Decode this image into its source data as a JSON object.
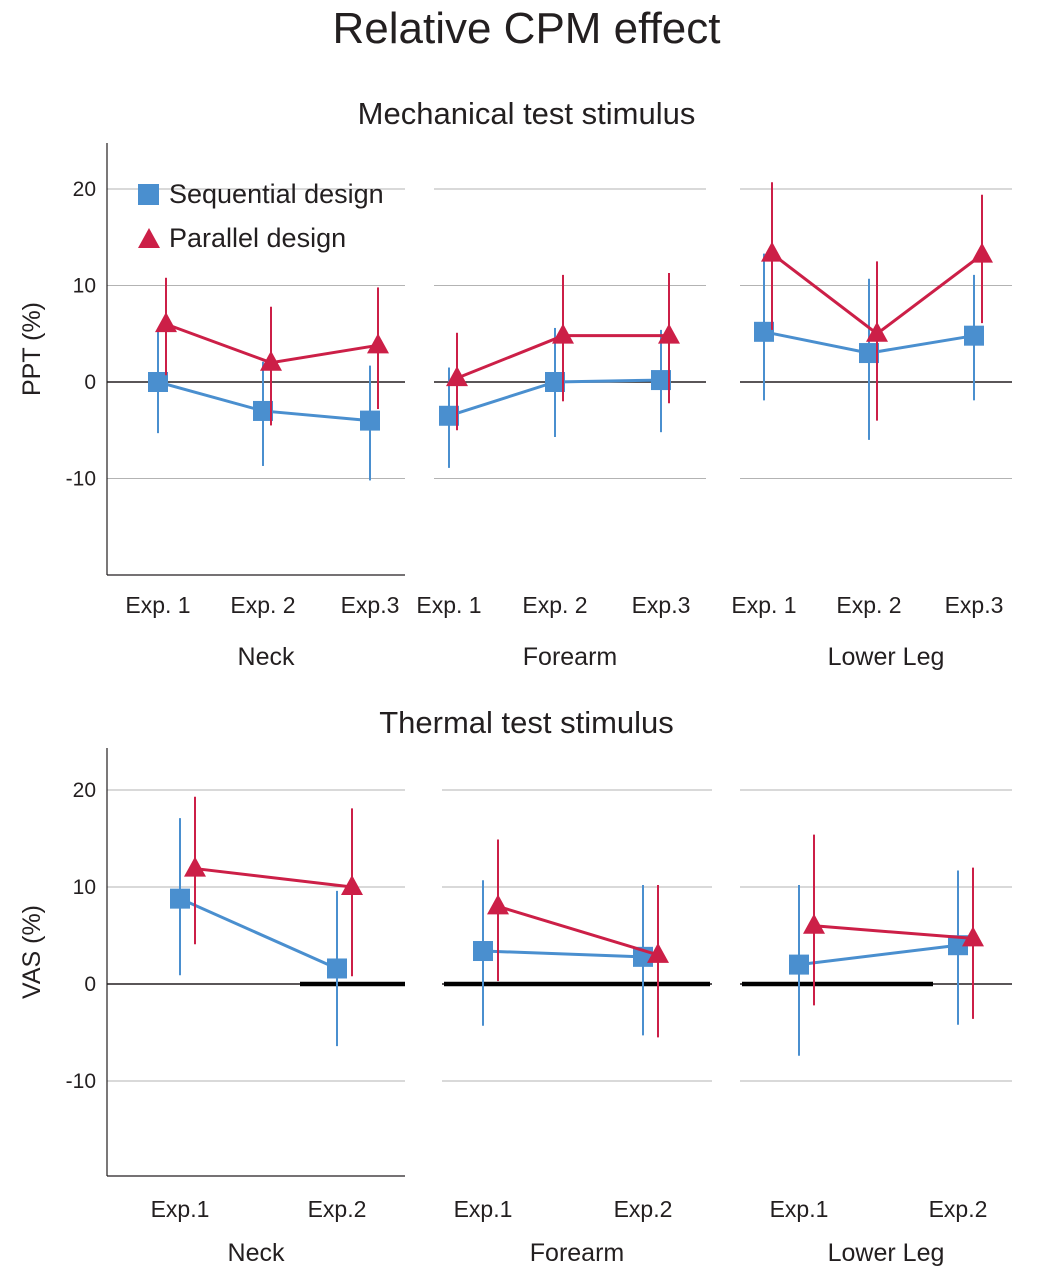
{
  "title": "Relative CPM effect",
  "colors": {
    "sequential": "#4a8fcf",
    "parallel": "#cc1f47",
    "grid": "#b3b3b3",
    "axis": "#231f20"
  },
  "legend": {
    "sequential": "Sequential design",
    "parallel": "Parallel design",
    "sequential_marker": "square",
    "parallel_marker": "triangle"
  },
  "chart_data": [
    {
      "type": "line",
      "title": "Mechanical test stimulus",
      "ylabel": "PPT (%)",
      "ylim": [
        -20,
        25
      ],
      "yticks": [
        20,
        10,
        0,
        -10
      ],
      "yticklabels": [
        "20",
        "10",
        "0",
        "-10"
      ],
      "grid": true,
      "legend_position": "top-left",
      "groups": [
        {
          "name": "Neck",
          "categories": [
            "Exp. 1",
            "Exp. 2",
            "Exp.3"
          ],
          "series": [
            {
              "name": "Sequential design",
              "values": [
                0,
                -3,
                -4
              ],
              "lower": [
                -5.3,
                -8.7,
                -10.2
              ],
              "upper": [
                5.2,
                2.1,
                1.7
              ]
            },
            {
              "name": "Parallel design",
              "values": [
                6,
                2,
                3.8
              ],
              "lower": [
                0.7,
                -4.5,
                -2.8
              ],
              "upper": [
                10.8,
                7.8,
                9.8
              ]
            }
          ]
        },
        {
          "name": "Forearm",
          "categories": [
            "Exp. 1",
            "Exp. 2",
            "Exp.3"
          ],
          "series": [
            {
              "name": "Sequential design",
              "values": [
                -3.5,
                0,
                0.2
              ],
              "lower": [
                -8.9,
                -5.7,
                -5.2
              ],
              "upper": [
                1.5,
                5.6,
                5.4
              ]
            },
            {
              "name": "Parallel design",
              "values": [
                0.4,
                4.8,
                4.8
              ],
              "lower": [
                -5,
                -2,
                -2.2
              ],
              "upper": [
                5.1,
                11.1,
                11.3
              ]
            }
          ]
        },
        {
          "name": "Lower Leg",
          "categories": [
            "Exp. 1",
            "Exp. 2",
            "Exp.3"
          ],
          "series": [
            {
              "name": "Sequential design",
              "values": [
                5.2,
                3,
                4.8
              ],
              "lower": [
                -1.9,
                -6,
                -1.9
              ],
              "upper": [
                13.3,
                10.7,
                11.1
              ]
            },
            {
              "name": "Parallel design",
              "values": [
                13.3,
                5,
                13.2
              ],
              "lower": [
                5.4,
                -4,
                6.1
              ],
              "upper": [
                20.7,
                12.5,
                19.4
              ]
            }
          ]
        }
      ]
    },
    {
      "type": "line",
      "title": "Thermal test stimulus",
      "ylabel": "VAS (%)",
      "ylim": [
        -20,
        25
      ],
      "yticks": [
        20,
        10,
        0,
        -10
      ],
      "yticklabels": [
        "20",
        "10",
        "0",
        "-10"
      ],
      "grid": true,
      "groups": [
        {
          "name": "Neck",
          "categories": [
            "Exp.1",
            "Exp.2"
          ],
          "series": [
            {
              "name": "Sequential design",
              "values": [
                8.8,
                1.6
              ],
              "lower": [
                0.9,
                -6.4
              ],
              "upper": [
                17.1,
                9.6
              ]
            },
            {
              "name": "Parallel design",
              "values": [
                11.9,
                10
              ],
              "lower": [
                4.1,
                0.8
              ],
              "upper": [
                19.3,
                18.1
              ]
            }
          ],
          "significance": [
            {
              "from": "Exp.2",
              "to": "Exp.2",
              "value": 0
            }
          ]
        },
        {
          "name": "Forearm",
          "categories": [
            "Exp.1",
            "Exp.2"
          ],
          "series": [
            {
              "name": "Sequential design",
              "values": [
                3.4,
                2.8
              ],
              "lower": [
                -4.3,
                -5.3
              ],
              "upper": [
                10.7,
                10.2
              ]
            },
            {
              "name": "Parallel design",
              "values": [
                8,
                3
              ],
              "lower": [
                0.3,
                -5.5
              ],
              "upper": [
                14.9,
                10.2
              ]
            }
          ],
          "significance": [
            {
              "from": "Exp.1",
              "to": "Exp.2",
              "value": 0
            }
          ]
        },
        {
          "name": "Lower Leg",
          "categories": [
            "Exp.1",
            "Exp.2"
          ],
          "series": [
            {
              "name": "Sequential design",
              "values": [
                2,
                4
              ],
              "lower": [
                -7.4,
                -4.2
              ],
              "upper": [
                10.2,
                11.7
              ]
            },
            {
              "name": "Parallel design",
              "values": [
                6,
                4.7
              ],
              "lower": [
                -2.2,
                -3.6
              ],
              "upper": [
                15.4,
                12
              ]
            }
          ],
          "significance": [
            {
              "from": "Exp.1",
              "to": "Exp.1",
              "value": 0
            }
          ]
        }
      ]
    }
  ]
}
